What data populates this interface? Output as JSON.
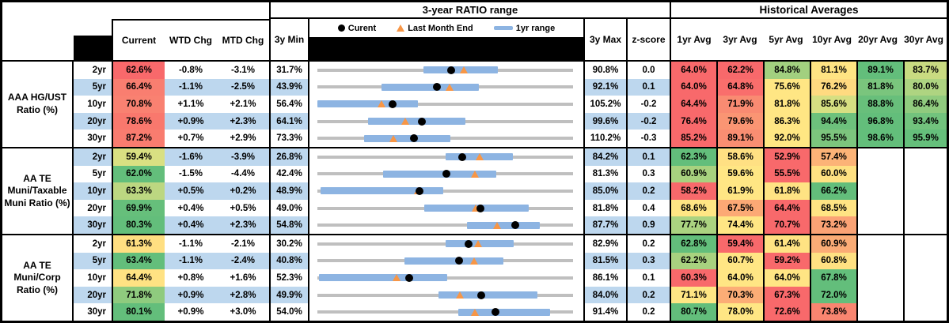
{
  "ui": {
    "range_title": "3-year RATIO range",
    "hist_title": "Historical Averages",
    "legend": {
      "current": "Curent",
      "last_month": "Last Month End",
      "yr_range": "1yr range"
    },
    "headers": {
      "current": "Current",
      "wtd": "WTD Chg",
      "mtd": "MTD Chg",
      "min": "3y Min",
      "max": "3y Max",
      "z": "z-score",
      "avgs": [
        "1yr Avg",
        "3yr Avg",
        "5yr Avg",
        "10yr Avg",
        "20yr Avg",
        "30yr Avg"
      ]
    },
    "colors": {
      "row_tint": "#BDD7EE",
      "range_bar": "#8DB4E2",
      "track": "#BFBFBF",
      "marker_current": "#000000",
      "marker_last_month": "#F79646",
      "scale_red": "#F8696B",
      "scale_yellow": "#FFE684",
      "scale_green": "#63BE7B"
    }
  },
  "chart_data": {
    "type": "table",
    "title": "3-year RATIO range",
    "description": "Muni ratio dashboard: per tenor dot-plot of current ratio and last-month-end ratio over 3y min-max range with 1yr range bar, plus WTD/MTD changes, z-score and historical averages. All values are percents.",
    "groups": [
      {
        "label": "AAA HG/UST Ratio (%)",
        "rows": [
          {
            "tenor": "2yr",
            "current": {
              "v": "62.6%",
              "c": "#F8696B"
            },
            "wtd": "-0.8%",
            "mtd": "-3.1%",
            "min": 31.7,
            "max": 90.8,
            "z": "0.0",
            "bar": [
              56.2,
              73.4
            ],
            "dot": 62.6,
            "tri": 65.7,
            "avgs": [
              {
                "v": "64.0%",
                "c": "#F8696B"
              },
              {
                "v": "62.2%",
                "c": "#F8696B"
              },
              {
                "v": "84.8%",
                "c": "#A2D07F"
              },
              {
                "v": "81.1%",
                "c": "#FFE483"
              },
              {
                "v": "89.1%",
                "c": "#63BE7B"
              },
              {
                "v": "83.7%",
                "c": "#C9DB81"
              }
            ]
          },
          {
            "tenor": "5yr",
            "current": {
              "v": "66.4%",
              "c": "#F97E70"
            },
            "wtd": "-1.1%",
            "mtd": "-2.5%",
            "min": 43.9,
            "max": 92.1,
            "z": "0.1",
            "bar": [
              56.0,
              74.4
            ],
            "dot": 66.4,
            "tri": 68.9,
            "avgs": [
              {
                "v": "64.0%",
                "c": "#F8696B"
              },
              {
                "v": "64.8%",
                "c": "#F96E6C"
              },
              {
                "v": "75.6%",
                "c": "#FFE684"
              },
              {
                "v": "76.2%",
                "c": "#FFDA80"
              },
              {
                "v": "81.8%",
                "c": "#7AC57D"
              },
              {
                "v": "80.0%",
                "c": "#AED481"
              }
            ]
          },
          {
            "tenor": "10yr",
            "current": {
              "v": "70.8%",
              "c": "#F98171"
            },
            "wtd": "+1.1%",
            "mtd": "+2.1%",
            "min": 56.4,
            "max": 105.2,
            "z": "-0.2",
            "bar": [
              56.4,
              75.6
            ],
            "dot": 70.8,
            "tri": 68.7,
            "avgs": [
              {
                "v": "64.4%",
                "c": "#F8696B"
              },
              {
                "v": "71.9%",
                "c": "#F98B72"
              },
              {
                "v": "81.8%",
                "c": "#FFE684"
              },
              {
                "v": "85.6%",
                "c": "#D6DF82"
              },
              {
                "v": "88.8%",
                "c": "#68BF7B"
              },
              {
                "v": "86.4%",
                "c": "#90CB7E"
              }
            ]
          },
          {
            "tenor": "20yr",
            "current": {
              "v": "78.6%",
              "c": "#F9786D"
            },
            "wtd": "+0.9%",
            "mtd": "+2.3%",
            "min": 64.1,
            "max": 99.6,
            "z": "-0.2",
            "bar": [
              71.1,
              84.7
            ],
            "dot": 78.6,
            "tri": 76.3,
            "avgs": [
              {
                "v": "76.4%",
                "c": "#F8696B"
              },
              {
                "v": "79.6%",
                "c": "#FA9573"
              },
              {
                "v": "86.3%",
                "c": "#FFE684"
              },
              {
                "v": "94.4%",
                "c": "#6DC17C"
              },
              {
                "v": "96.8%",
                "c": "#63BE7B"
              },
              {
                "v": "93.4%",
                "c": "#72C37D"
              }
            ]
          },
          {
            "tenor": "30yr",
            "current": {
              "v": "87.2%",
              "c": "#F97C6F"
            },
            "wtd": "+0.7%",
            "mtd": "+2.9%",
            "min": 73.3,
            "max": 110.2,
            "z": "-0.3",
            "bar": [
              80.0,
              92.5
            ],
            "dot": 87.2,
            "tri": 84.3,
            "avgs": [
              {
                "v": "85.2%",
                "c": "#F8696B"
              },
              {
                "v": "89.1%",
                "c": "#F98E72"
              },
              {
                "v": "92.0%",
                "c": "#FFE783"
              },
              {
                "v": "95.5%",
                "c": "#7CC57D"
              },
              {
                "v": "98.6%",
                "c": "#63BE7B"
              },
              {
                "v": "95.9%",
                "c": "#65BF7B"
              }
            ]
          }
        ]
      },
      {
        "label": "AA TE Muni/Taxable Muni Ratio (%)",
        "rows": [
          {
            "tenor": "2yr",
            "current": {
              "v": "59.4%",
              "c": "#D9E082"
            },
            "wtd": "-1.6%",
            "mtd": "-3.9%",
            "min": 26.8,
            "max": 84.2,
            "z": "0.1",
            "bar": [
              55.5,
              70.7
            ],
            "dot": 59.4,
            "tri": 63.3,
            "avgs": [
              {
                "v": "62.3%",
                "c": "#63BE7B"
              },
              {
                "v": "58.6%",
                "c": "#FFE083"
              },
              {
                "v": "52.9%",
                "c": "#F8696B"
              },
              {
                "v": "57.4%",
                "c": "#FCB377"
              },
              null,
              null
            ]
          },
          {
            "tenor": "5yr",
            "current": {
              "v": "62.0%",
              "c": "#63BE7B"
            },
            "wtd": "-1.5%",
            "mtd": "-4.4%",
            "min": 42.4,
            "max": 81.3,
            "z": "0.3",
            "bar": [
              52.4,
              69.6
            ],
            "dot": 62.0,
            "tri": 66.4,
            "avgs": [
              {
                "v": "60.9%",
                "c": "#A8D27F"
              },
              {
                "v": "59.6%",
                "c": "#FFE684"
              },
              {
                "v": "55.5%",
                "c": "#F8696B"
              },
              {
                "v": "60.0%",
                "c": "#FFE182"
              },
              null,
              null
            ]
          },
          {
            "tenor": "10yr",
            "current": {
              "v": "63.3%",
              "c": "#BCD781"
            },
            "wtd": "+0.5%",
            "mtd": "+0.2%",
            "min": 48.9,
            "max": 85.0,
            "z": "0.2",
            "bar": [
              49.4,
              66.7
            ],
            "dot": 63.3,
            "tri": 63.1,
            "avgs": [
              {
                "v": "58.2%",
                "c": "#F8696B"
              },
              {
                "v": "61.9%",
                "c": "#FFE684"
              },
              {
                "v": "61.8%",
                "c": "#FFE383"
              },
              {
                "v": "66.2%",
                "c": "#63BE7B"
              },
              null,
              null
            ]
          },
          {
            "tenor": "20yr",
            "current": {
              "v": "69.9%",
              "c": "#66BF7B"
            },
            "wtd": "+0.4%",
            "mtd": "+0.5%",
            "min": 49.0,
            "max": 81.8,
            "z": "0.4",
            "bar": [
              62.7,
              76.1
            ],
            "dot": 69.9,
            "tri": 69.4,
            "avgs": [
              {
                "v": "68.6%",
                "c": "#FFE684"
              },
              {
                "v": "67.5%",
                "c": "#FCA975"
              },
              {
                "v": "64.4%",
                "c": "#F8696B"
              },
              {
                "v": "68.5%",
                "c": "#FFE483"
              },
              null,
              null
            ]
          },
          {
            "tenor": "30yr",
            "current": {
              "v": "80.3%",
              "c": "#63BE7B"
            },
            "wtd": "+0.4%",
            "mtd": "+2.3%",
            "min": 54.8,
            "max": 87.7,
            "z": "0.9",
            "bar": [
              74.1,
              83.4
            ],
            "dot": 80.3,
            "tri": 78.0,
            "avgs": [
              {
                "v": "77.7%",
                "c": "#ABD380"
              },
              {
                "v": "74.4%",
                "c": "#FFE684"
              },
              {
                "v": "70.7%",
                "c": "#F8696B"
              },
              {
                "v": "73.2%",
                "c": "#FBA375"
              },
              null,
              null
            ]
          }
        ]
      },
      {
        "label": "AA TE Muni/Corp Ratio (%)",
        "rows": [
          {
            "tenor": "2yr",
            "current": {
              "v": "61.3%",
              "c": "#FFDF81"
            },
            "wtd": "-1.1%",
            "mtd": "-2.1%",
            "min": 30.2,
            "max": 82.9,
            "z": "0.2",
            "bar": [
              56.6,
              70.6
            ],
            "dot": 61.3,
            "tri": 63.4,
            "avgs": [
              {
                "v": "62.8%",
                "c": "#63BE7B"
              },
              {
                "v": "59.4%",
                "c": "#F8696B"
              },
              {
                "v": "61.4%",
                "c": "#FFE383"
              },
              {
                "v": "60.9%",
                "c": "#FBAC76"
              },
              null,
              null
            ]
          },
          {
            "tenor": "5yr",
            "current": {
              "v": "63.4%",
              "c": "#63BE7B"
            },
            "wtd": "-1.1%",
            "mtd": "-2.4%",
            "min": 40.8,
            "max": 81.5,
            "z": "0.3",
            "bar": [
              54.6,
              70.4
            ],
            "dot": 63.4,
            "tri": 65.8,
            "avgs": [
              {
                "v": "62.2%",
                "c": "#A8D27F"
              },
              {
                "v": "60.7%",
                "c": "#FFE684"
              },
              {
                "v": "59.2%",
                "c": "#F8696B"
              },
              {
                "v": "60.8%",
                "c": "#FFE182"
              },
              null,
              null
            ]
          },
          {
            "tenor": "10yr",
            "current": {
              "v": "64.4%",
              "c": "#FFE283"
            },
            "wtd": "+0.8%",
            "mtd": "+1.6%",
            "min": 52.3,
            "max": 86.1,
            "z": "0.1",
            "bar": [
              52.5,
              69.5
            ],
            "dot": 64.4,
            "tri": 62.8,
            "avgs": [
              {
                "v": "60.3%",
                "c": "#F8696B"
              },
              {
                "v": "64.0%",
                "c": "#FFE684"
              },
              {
                "v": "64.0%",
                "c": "#FFE584"
              },
              {
                "v": "67.8%",
                "c": "#63BE7B"
              },
              null,
              null
            ]
          },
          {
            "tenor": "20yr",
            "current": {
              "v": "71.8%",
              "c": "#8FCB7E"
            },
            "wtd": "+0.9%",
            "mtd": "+2.8%",
            "min": 49.9,
            "max": 84.0,
            "z": "0.2",
            "bar": [
              66.1,
              79.2
            ],
            "dot": 71.8,
            "tri": 69.0,
            "avgs": [
              {
                "v": "71.1%",
                "c": "#FFE684"
              },
              {
                "v": "70.3%",
                "c": "#FCAD76"
              },
              {
                "v": "67.3%",
                "c": "#F8696B"
              },
              {
                "v": "72.0%",
                "c": "#63BE7B"
              },
              null,
              null
            ]
          },
          {
            "tenor": "30yr",
            "current": {
              "v": "80.1%",
              "c": "#63BE7B"
            },
            "wtd": "+0.9%",
            "mtd": "+3.0%",
            "min": 54.0,
            "max": 91.4,
            "z": "0.2",
            "bar": [
              74.6,
              88.0
            ],
            "dot": 80.1,
            "tri": 77.1,
            "avgs": [
              {
                "v": "80.7%",
                "c": "#63BE7B"
              },
              {
                "v": "78.0%",
                "c": "#FFE684"
              },
              {
                "v": "72.6%",
                "c": "#F8696B"
              },
              {
                "v": "73.8%",
                "c": "#F98570"
              },
              null,
              null
            ]
          }
        ]
      }
    ]
  }
}
